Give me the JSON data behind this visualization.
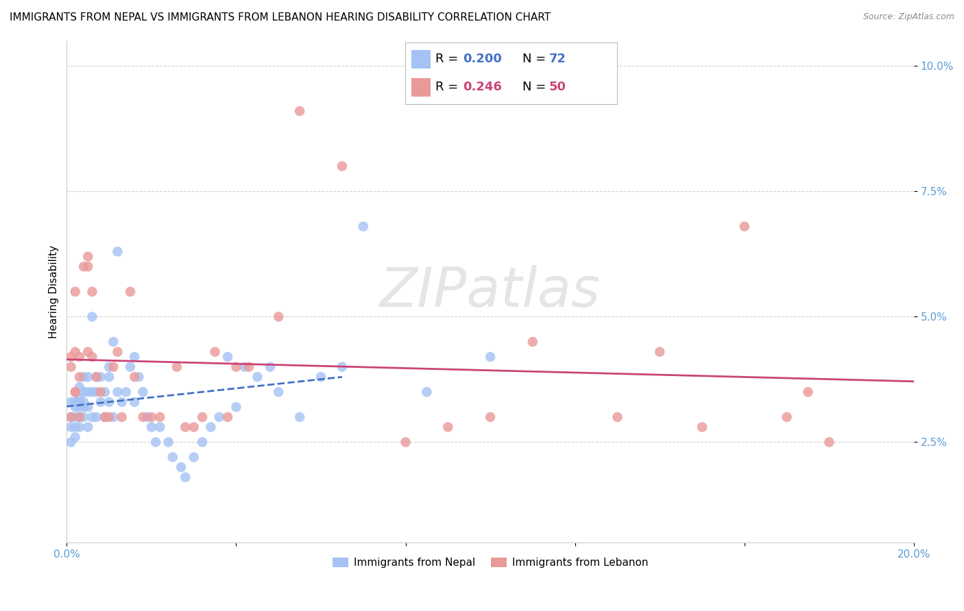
{
  "title": "IMMIGRANTS FROM NEPAL VS IMMIGRANTS FROM LEBANON HEARING DISABILITY CORRELATION CHART",
  "source": "Source: ZipAtlas.com",
  "ylabel": "Hearing Disability",
  "xlim": [
    0.0,
    0.2
  ],
  "ylim": [
    0.005,
    0.105
  ],
  "yticks": [
    0.025,
    0.05,
    0.075,
    0.1
  ],
  "ytick_labels": [
    "2.5%",
    "5.0%",
    "7.5%",
    "10.0%"
  ],
  "xticks": [
    0.0,
    0.04,
    0.08,
    0.12,
    0.16,
    0.2
  ],
  "xtick_labels": [
    "0.0%",
    "",
    "",
    "",
    "",
    "20.0%"
  ],
  "nepal_color": "#a4c2f4",
  "lebanon_color": "#ea9999",
  "nepal_R": 0.2,
  "nepal_N": 72,
  "lebanon_R": 0.246,
  "lebanon_N": 50,
  "nepal_x": [
    0.001,
    0.001,
    0.001,
    0.001,
    0.002,
    0.002,
    0.002,
    0.002,
    0.002,
    0.003,
    0.003,
    0.003,
    0.003,
    0.003,
    0.003,
    0.004,
    0.004,
    0.004,
    0.004,
    0.004,
    0.005,
    0.005,
    0.005,
    0.005,
    0.006,
    0.006,
    0.006,
    0.007,
    0.007,
    0.007,
    0.008,
    0.008,
    0.009,
    0.009,
    0.01,
    0.01,
    0.01,
    0.011,
    0.011,
    0.012,
    0.012,
    0.013,
    0.014,
    0.015,
    0.016,
    0.016,
    0.017,
    0.018,
    0.019,
    0.02,
    0.021,
    0.022,
    0.024,
    0.025,
    0.027,
    0.028,
    0.03,
    0.032,
    0.034,
    0.036,
    0.038,
    0.04,
    0.042,
    0.045,
    0.048,
    0.05,
    0.055,
    0.06,
    0.065,
    0.07,
    0.085,
    0.1
  ],
  "nepal_y": [
    0.033,
    0.03,
    0.028,
    0.025,
    0.033,
    0.03,
    0.028,
    0.026,
    0.032,
    0.034,
    0.032,
    0.03,
    0.028,
    0.033,
    0.036,
    0.035,
    0.033,
    0.032,
    0.03,
    0.038,
    0.038,
    0.035,
    0.032,
    0.028,
    0.05,
    0.035,
    0.03,
    0.038,
    0.035,
    0.03,
    0.038,
    0.033,
    0.035,
    0.03,
    0.04,
    0.038,
    0.033,
    0.045,
    0.03,
    0.063,
    0.035,
    0.033,
    0.035,
    0.04,
    0.042,
    0.033,
    0.038,
    0.035,
    0.03,
    0.028,
    0.025,
    0.028,
    0.025,
    0.022,
    0.02,
    0.018,
    0.022,
    0.025,
    0.028,
    0.03,
    0.042,
    0.032,
    0.04,
    0.038,
    0.04,
    0.035,
    0.03,
    0.038,
    0.04,
    0.068,
    0.035,
    0.042
  ],
  "lebanon_x": [
    0.001,
    0.001,
    0.001,
    0.002,
    0.002,
    0.002,
    0.002,
    0.003,
    0.003,
    0.003,
    0.004,
    0.005,
    0.005,
    0.005,
    0.006,
    0.006,
    0.007,
    0.008,
    0.009,
    0.01,
    0.011,
    0.012,
    0.013,
    0.015,
    0.016,
    0.018,
    0.02,
    0.022,
    0.026,
    0.028,
    0.03,
    0.032,
    0.035,
    0.038,
    0.04,
    0.043,
    0.05,
    0.055,
    0.065,
    0.08,
    0.09,
    0.1,
    0.11,
    0.13,
    0.14,
    0.15,
    0.16,
    0.17,
    0.175,
    0.18
  ],
  "lebanon_y": [
    0.03,
    0.042,
    0.04,
    0.035,
    0.055,
    0.043,
    0.035,
    0.042,
    0.038,
    0.03,
    0.06,
    0.062,
    0.06,
    0.043,
    0.055,
    0.042,
    0.038,
    0.035,
    0.03,
    0.03,
    0.04,
    0.043,
    0.03,
    0.055,
    0.038,
    0.03,
    0.03,
    0.03,
    0.04,
    0.028,
    0.028,
    0.03,
    0.043,
    0.03,
    0.04,
    0.04,
    0.05,
    0.091,
    0.08,
    0.025,
    0.028,
    0.03,
    0.045,
    0.03,
    0.043,
    0.028,
    0.068,
    0.03,
    0.035,
    0.025
  ],
  "nepal_line_color": "#4472c4",
  "lebanon_line_color": "#cc4477",
  "nepal_line_xrange": [
    0.0,
    0.065
  ],
  "lebanon_line_xrange": [
    0.0,
    0.2
  ],
  "grid_color": "#d0d0d0",
  "background_color": "#ffffff",
  "tick_color": "#5b9bd5",
  "title_fontsize": 11,
  "axis_label_fontsize": 11,
  "tick_fontsize": 11,
  "watermark_text": "ZIPatlas",
  "legend_nepal_color": "#a4c2f4",
  "legend_lebanon_color": "#ea9999",
  "legend_R_N_color": "#4472c4",
  "legend_nepal_R_N_color": "#4472c4",
  "legend_lebanon_R_N_color": "#cc4477"
}
